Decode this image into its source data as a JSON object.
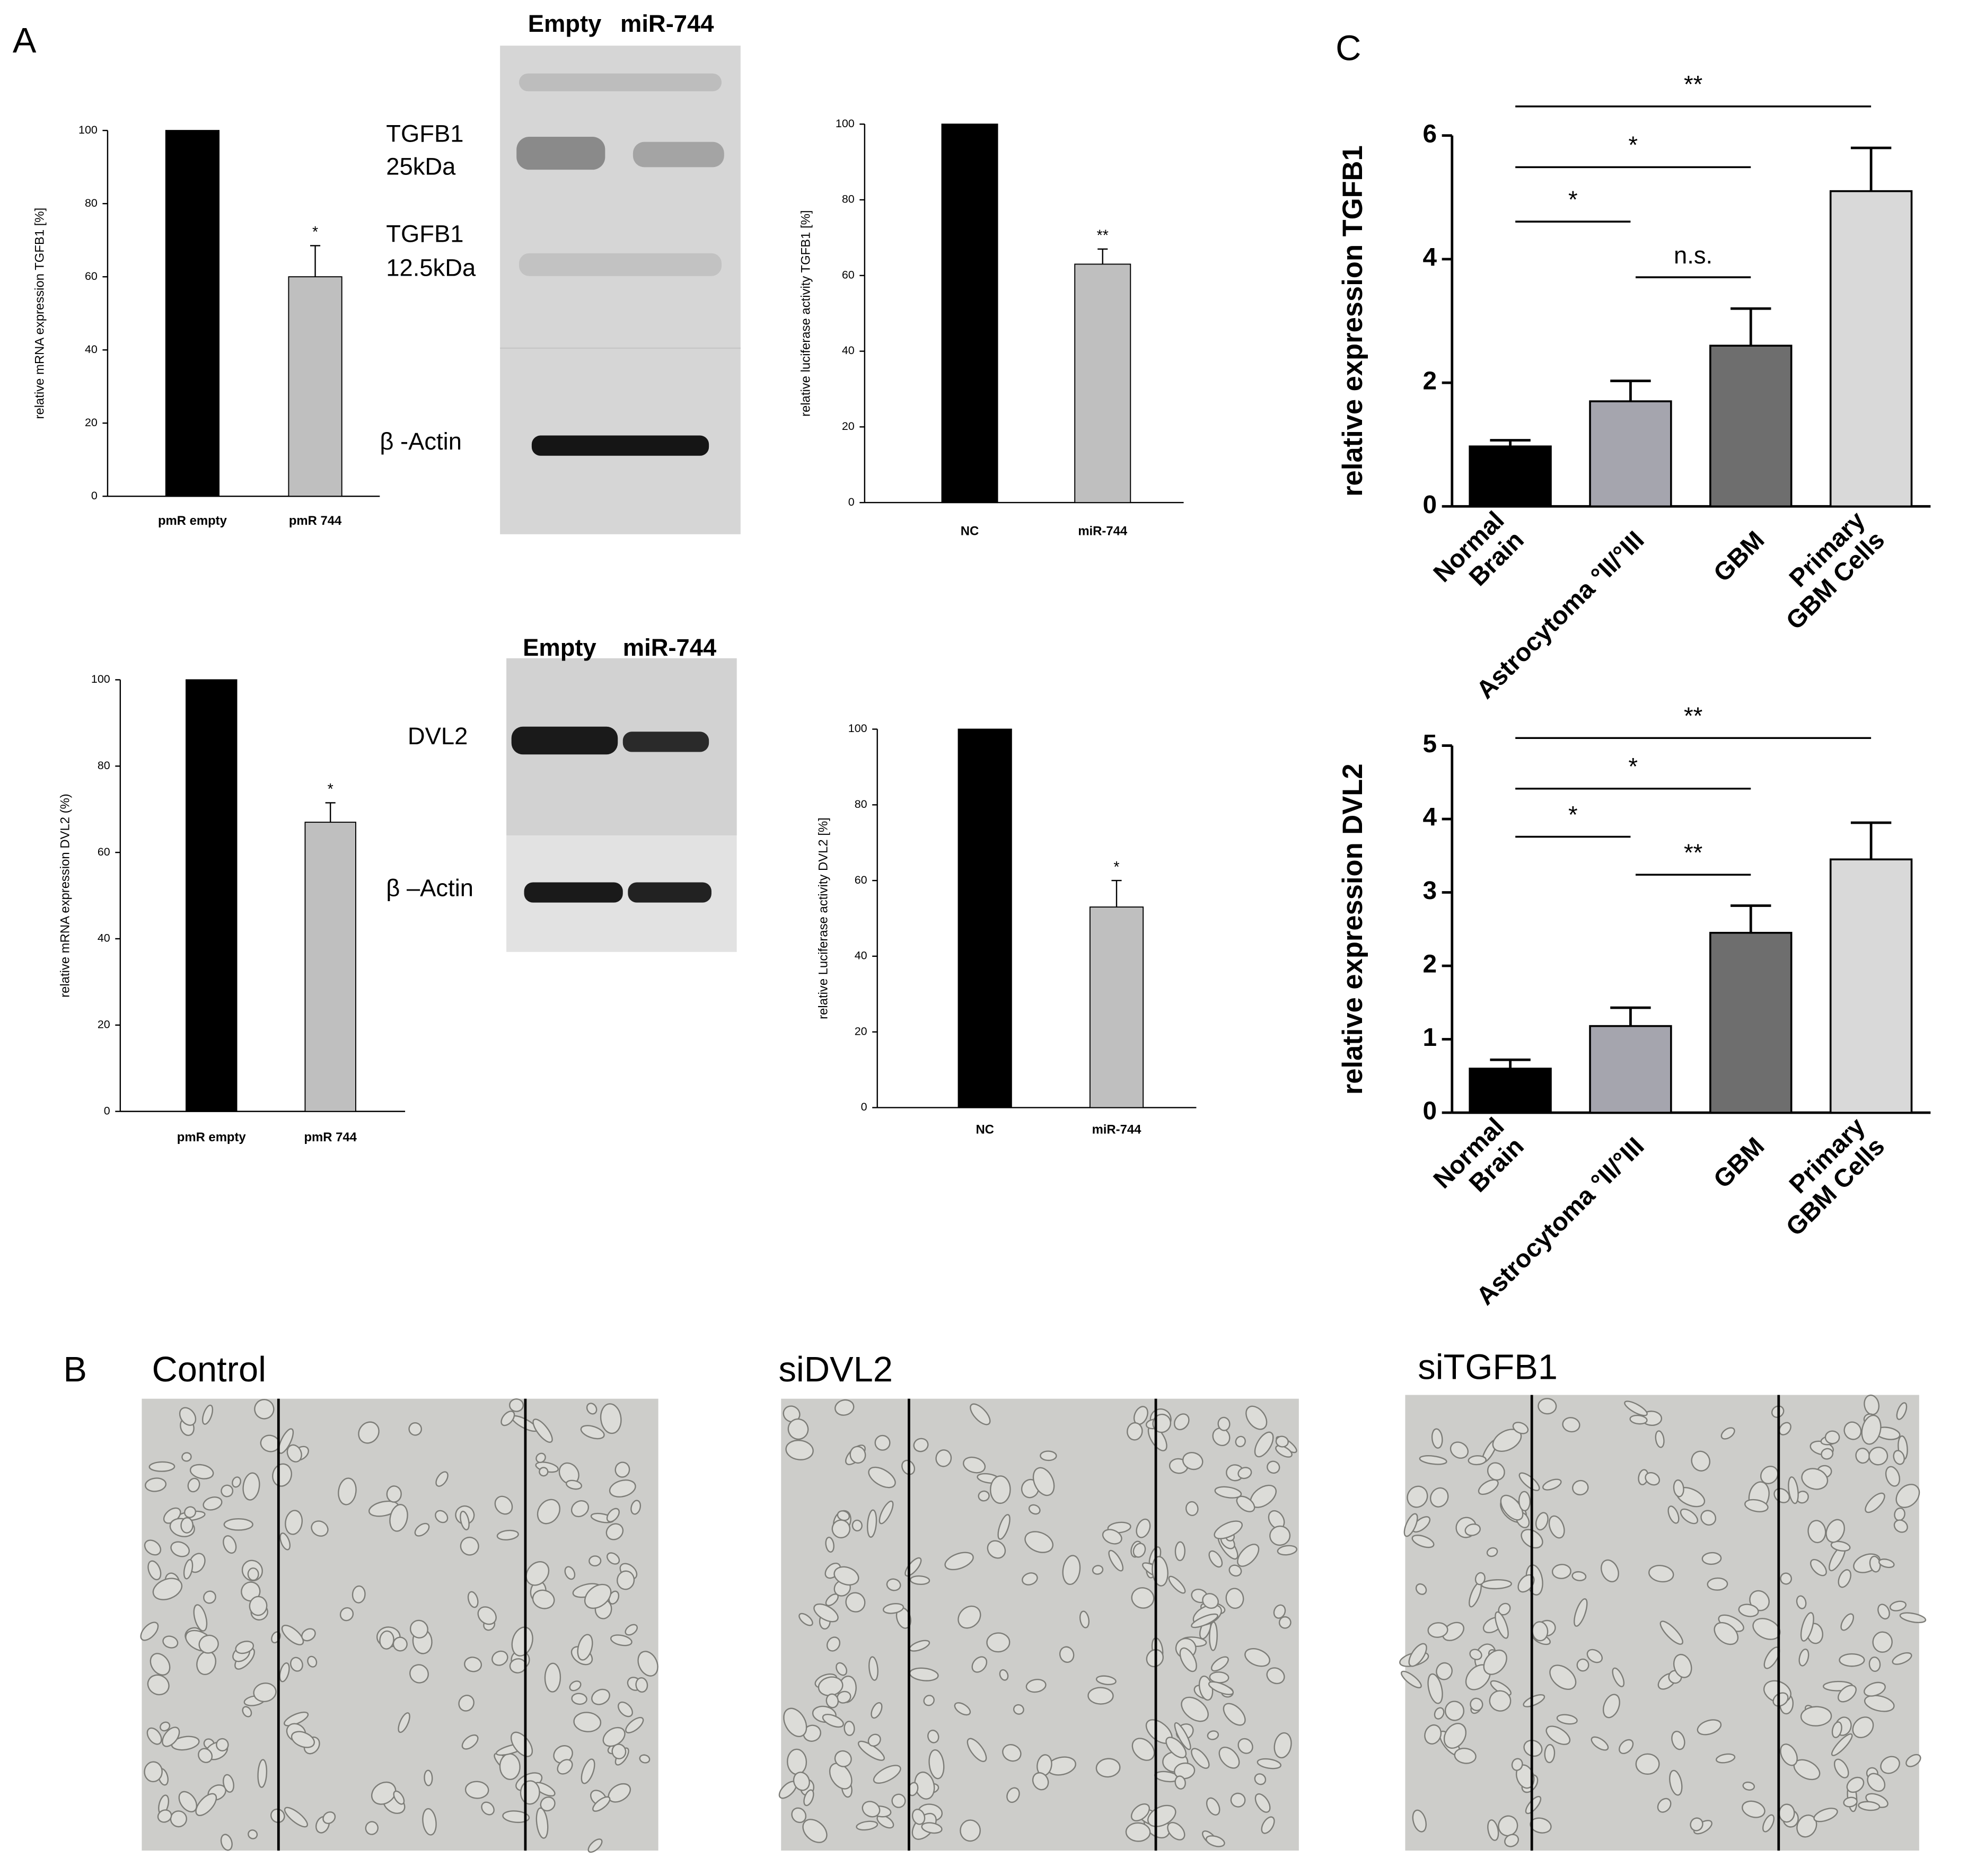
{
  "panel_labels": [
    "A",
    "B",
    "C"
  ],
  "blots": [
    {
      "header": [
        "Empty",
        "miR-744"
      ],
      "labels": [
        [
          "TGFB1",
          "25kDa"
        ],
        [
          "TGFB1",
          "12.5kDa"
        ],
        [
          "β -Actin"
        ]
      ]
    },
    {
      "header": [
        "Empty",
        "miR-744"
      ],
      "labels": [
        [
          "DVL2"
        ],
        [
          "β –Actin"
        ]
      ]
    }
  ],
  "migration": {
    "images": [
      "Control",
      "siDVL2",
      "siTGFB1"
    ]
  },
  "chart_data": [
    {
      "type": "bar",
      "ylabel": "relative mRNA expression TGFB1 [%]",
      "categories": [
        [
          "pmR empty"
        ],
        [
          "pmR 744"
        ]
      ],
      "values": [
        100,
        60
      ],
      "errors": [
        null,
        8.5
      ],
      "colors": [
        "#000000",
        "#bfbfbf"
      ],
      "value_annotations": [
        null,
        "*"
      ],
      "ylim": [
        0,
        100
      ],
      "yticks": [
        0,
        20,
        40,
        60,
        80,
        100
      ]
    },
    {
      "type": "bar",
      "ylabel": "relative luciferase activity TGFB1 [%]",
      "categories": [
        [
          "NC"
        ],
        [
          "miR-744"
        ]
      ],
      "values": [
        100,
        63
      ],
      "errors": [
        null,
        4
      ],
      "colors": [
        "#000000",
        "#bfbfbf"
      ],
      "value_annotations": [
        null,
        "**"
      ],
      "ylim": [
        0,
        100
      ],
      "yticks": [
        0,
        20,
        40,
        60,
        80,
        100
      ]
    },
    {
      "type": "bar",
      "ylabel": "relative mRNA expression DVL2 (%)",
      "categories": [
        [
          "pmR empty"
        ],
        [
          "pmR 744"
        ]
      ],
      "values": [
        100,
        67
      ],
      "errors": [
        null,
        4.5
      ],
      "colors": [
        "#000000",
        "#bfbfbf"
      ],
      "value_annotations": [
        null,
        "*"
      ],
      "ylim": [
        0,
        100
      ],
      "yticks": [
        0,
        20,
        40,
        60,
        80,
        100
      ]
    },
    {
      "type": "bar",
      "ylabel": "relative Luciferase activity DVL2 [%]",
      "categories": [
        [
          "NC"
        ],
        [
          "miR-744"
        ]
      ],
      "values": [
        100,
        53
      ],
      "errors": [
        null,
        7
      ],
      "colors": [
        "#000000",
        "#bfbfbf"
      ],
      "value_annotations": [
        null,
        "*"
      ],
      "ylim": [
        0,
        100
      ],
      "yticks": [
        0,
        20,
        40,
        60,
        80,
        100
      ]
    },
    {
      "type": "bar",
      "ylabel": "relative expression TGFB1",
      "categories": [
        [
          "Normal",
          "Brain"
        ],
        [
          "Astrocytoma °II/°III"
        ],
        [
          "GBM"
        ],
        [
          "Primary",
          "GBM Cells"
        ]
      ],
      "values": [
        0.97,
        1.7,
        2.6,
        5.1
      ],
      "errors": [
        0.1,
        0.33,
        0.6,
        0.7
      ],
      "colors": [
        "#000000",
        "#a5a5ae",
        "#6e6e6e",
        "#d9d9d9"
      ],
      "brackets": [
        {
          "from": 0,
          "to": 1,
          "label": "*"
        },
        {
          "from": 1,
          "to": 2,
          "label": "n.s."
        },
        {
          "from": 0,
          "to": 2,
          "label": "*"
        },
        {
          "from": 0,
          "to": 3,
          "label": "**"
        }
      ],
      "ylim": [
        0,
        6
      ],
      "yticks": [
        0,
        2,
        4,
        6
      ]
    },
    {
      "type": "bar",
      "ylabel": "relative expression DVL2",
      "categories": [
        [
          "Normal",
          "Brain"
        ],
        [
          "Astrocytoma °II/°III"
        ],
        [
          "GBM"
        ],
        [
          "Primary",
          "GBM Cells"
        ]
      ],
      "values": [
        0.6,
        1.18,
        2.45,
        3.45
      ],
      "errors": [
        0.12,
        0.25,
        0.37,
        0.5
      ],
      "colors": [
        "#000000",
        "#a5a5ae",
        "#6e6e6e",
        "#d9d9d9"
      ],
      "brackets": [
        {
          "from": 0,
          "to": 1,
          "label": "*"
        },
        {
          "from": 1,
          "to": 2,
          "label": "**"
        },
        {
          "from": 0,
          "to": 2,
          "label": "*"
        },
        {
          "from": 0,
          "to": 3,
          "label": "**"
        }
      ],
      "ylim": [
        0,
        5
      ],
      "yticks": [
        0,
        1,
        2,
        3,
        4,
        5
      ]
    }
  ]
}
